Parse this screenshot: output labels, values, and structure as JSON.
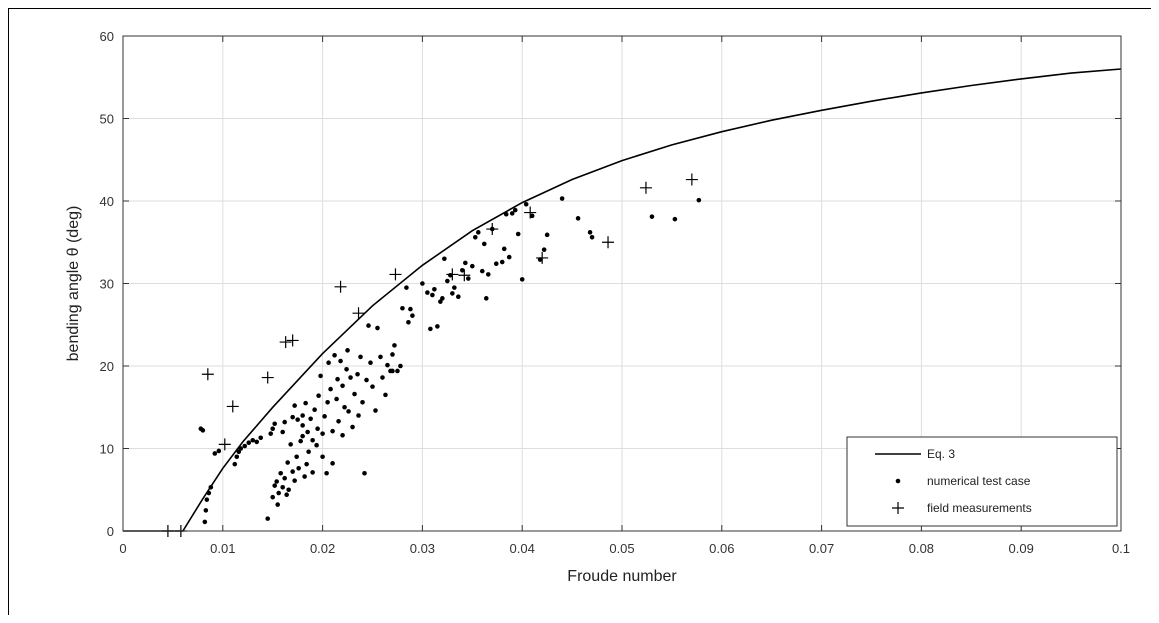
{
  "chart_data": {
    "type": "scatter",
    "title": "",
    "xlabel": "Froude number",
    "ylabel": "bending angle θ (deg)",
    "xlim": [
      0,
      0.1
    ],
    "ylim": [
      0,
      60
    ],
    "grid": true,
    "legend_position": "bottom-right",
    "x_ticks": [
      0,
      0.01,
      0.02,
      0.03,
      0.04,
      0.05,
      0.06,
      0.07,
      0.08,
      0.09,
      0.1
    ],
    "x_tick_labels": [
      "0",
      "0.01",
      "0.02",
      "0.03",
      "0.04",
      "0.05",
      "0.06",
      "0.07",
      "0.08",
      "0.09",
      "0.1"
    ],
    "y_ticks": [
      0,
      10,
      20,
      30,
      40,
      50,
      60
    ],
    "y_tick_labels": [
      "0",
      "10",
      "20",
      "30",
      "40",
      "50",
      "60"
    ],
    "series": [
      {
        "name": "Eq. 3",
        "kind": "line",
        "color": "#000000",
        "x": [
          0,
          0.006,
          0.008,
          0.01,
          0.012,
          0.015,
          0.018,
          0.02,
          0.025,
          0.03,
          0.035,
          0.04,
          0.045,
          0.05,
          0.055,
          0.06,
          0.065,
          0.07,
          0.075,
          0.08,
          0.085,
          0.09,
          0.095,
          0.1
        ],
        "y": [
          0,
          0,
          3.9,
          7.6,
          10.8,
          15.0,
          18.9,
          21.5,
          27.3,
          32.2,
          36.4,
          39.8,
          42.6,
          44.9,
          46.8,
          48.4,
          49.8,
          51.0,
          52.1,
          53.1,
          54.0,
          54.8,
          55.5,
          56.0
        ]
      },
      {
        "name": "numerical test case",
        "kind": "points",
        "color": "#000000",
        "points": [
          [
            0.0078,
            12.4
          ],
          [
            0.008,
            12.2
          ],
          [
            0.0082,
            1.1
          ],
          [
            0.0083,
            2.5
          ],
          [
            0.0084,
            3.8
          ],
          [
            0.0086,
            4.6
          ],
          [
            0.0088,
            5.3
          ],
          [
            0.0092,
            9.4
          ],
          [
            0.0096,
            9.7
          ],
          [
            0.0112,
            8.1
          ],
          [
            0.0114,
            9.0
          ],
          [
            0.0116,
            9.6
          ],
          [
            0.0118,
            10.0
          ],
          [
            0.0122,
            10.3
          ],
          [
            0.0126,
            10.7
          ],
          [
            0.013,
            11.0
          ],
          [
            0.0134,
            10.8
          ],
          [
            0.0138,
            11.3
          ],
          [
            0.0145,
            1.5
          ],
          [
            0.0148,
            11.8
          ],
          [
            0.015,
            12.4
          ],
          [
            0.015,
            4.1
          ],
          [
            0.0152,
            5.5
          ],
          [
            0.0152,
            13.0
          ],
          [
            0.0154,
            6.0
          ],
          [
            0.0155,
            3.2
          ],
          [
            0.0156,
            4.6
          ],
          [
            0.0158,
            7.0
          ],
          [
            0.016,
            5.3
          ],
          [
            0.016,
            12.0
          ],
          [
            0.0162,
            6.4
          ],
          [
            0.0162,
            13.2
          ],
          [
            0.0164,
            4.4
          ],
          [
            0.0165,
            8.3
          ],
          [
            0.0166,
            5.0
          ],
          [
            0.0168,
            10.5
          ],
          [
            0.017,
            13.8
          ],
          [
            0.017,
            7.2
          ],
          [
            0.0172,
            6.1
          ],
          [
            0.0172,
            15.2
          ],
          [
            0.0174,
            9.0
          ],
          [
            0.0175,
            13.5
          ],
          [
            0.0176,
            7.6
          ],
          [
            0.0178,
            10.9
          ],
          [
            0.018,
            14.0
          ],
          [
            0.018,
            11.5
          ],
          [
            0.018,
            12.8
          ],
          [
            0.0182,
            6.6
          ],
          [
            0.0183,
            15.5
          ],
          [
            0.0184,
            8.1
          ],
          [
            0.0185,
            12.0
          ],
          [
            0.0186,
            9.6
          ],
          [
            0.0188,
            13.6
          ],
          [
            0.019,
            11.0
          ],
          [
            0.019,
            7.1
          ],
          [
            0.0192,
            14.7
          ],
          [
            0.0194,
            10.4
          ],
          [
            0.0195,
            12.4
          ],
          [
            0.0196,
            16.4
          ],
          [
            0.0198,
            18.8
          ],
          [
            0.02,
            9.0
          ],
          [
            0.02,
            11.8
          ],
          [
            0.0202,
            13.9
          ],
          [
            0.0204,
            7.0
          ],
          [
            0.0205,
            15.6
          ],
          [
            0.0206,
            20.4
          ],
          [
            0.0208,
            17.2
          ],
          [
            0.021,
            12.1
          ],
          [
            0.021,
            8.2
          ],
          [
            0.0212,
            21.3
          ],
          [
            0.0214,
            16.0
          ],
          [
            0.0215,
            18.4
          ],
          [
            0.0216,
            13.3
          ],
          [
            0.0218,
            20.6
          ],
          [
            0.022,
            17.6
          ],
          [
            0.022,
            11.6
          ],
          [
            0.0222,
            15.0
          ],
          [
            0.0224,
            19.6
          ],
          [
            0.0225,
            21.9
          ],
          [
            0.0226,
            14.5
          ],
          [
            0.0228,
            18.6
          ],
          [
            0.023,
            12.6
          ],
          [
            0.0232,
            16.6
          ],
          [
            0.0235,
            19.0
          ],
          [
            0.0236,
            14.0
          ],
          [
            0.0238,
            21.1
          ],
          [
            0.024,
            15.6
          ],
          [
            0.0242,
            7.0
          ],
          [
            0.0244,
            18.3
          ],
          [
            0.0246,
            24.9
          ],
          [
            0.0248,
            20.4
          ],
          [
            0.025,
            17.5
          ],
          [
            0.0253,
            14.6
          ],
          [
            0.0255,
            24.6
          ],
          [
            0.0258,
            21.1
          ],
          [
            0.026,
            18.6
          ],
          [
            0.0263,
            16.5
          ],
          [
            0.0265,
            20.1
          ],
          [
            0.0268,
            19.4
          ],
          [
            0.027,
            21.4
          ],
          [
            0.027,
            19.4
          ],
          [
            0.0272,
            22.5
          ],
          [
            0.0275,
            19.4
          ],
          [
            0.0278,
            20.0
          ],
          [
            0.028,
            27.0
          ],
          [
            0.0284,
            29.5
          ],
          [
            0.0286,
            25.3
          ],
          [
            0.0288,
            26.9
          ],
          [
            0.029,
            26.1
          ],
          [
            0.03,
            30.0
          ],
          [
            0.0305,
            28.9
          ],
          [
            0.0308,
            24.5
          ],
          [
            0.031,
            28.6
          ],
          [
            0.0312,
            29.3
          ],
          [
            0.0315,
            24.8
          ],
          [
            0.0318,
            27.8
          ],
          [
            0.032,
            28.2
          ],
          [
            0.0322,
            33.0
          ],
          [
            0.0325,
            30.3
          ],
          [
            0.0328,
            31.0
          ],
          [
            0.033,
            28.8
          ],
          [
            0.0332,
            29.5
          ],
          [
            0.0336,
            28.4
          ],
          [
            0.034,
            31.6
          ],
          [
            0.0343,
            32.5
          ],
          [
            0.0346,
            30.6
          ],
          [
            0.035,
            32.1
          ],
          [
            0.0353,
            35.6
          ],
          [
            0.0356,
            36.2
          ],
          [
            0.036,
            31.5
          ],
          [
            0.0362,
            34.8
          ],
          [
            0.0364,
            28.2
          ],
          [
            0.0366,
            31.1
          ],
          [
            0.037,
            36.6
          ],
          [
            0.0374,
            32.4
          ],
          [
            0.038,
            32.6
          ],
          [
            0.0382,
            34.2
          ],
          [
            0.0384,
            38.4
          ],
          [
            0.0387,
            33.2
          ],
          [
            0.039,
            38.5
          ],
          [
            0.0393,
            38.9
          ],
          [
            0.0396,
            36.0
          ],
          [
            0.04,
            30.5
          ],
          [
            0.0404,
            39.6
          ],
          [
            0.041,
            38.2
          ],
          [
            0.0418,
            32.9
          ],
          [
            0.0422,
            34.1
          ],
          [
            0.0425,
            35.9
          ],
          [
            0.044,
            40.3
          ],
          [
            0.0456,
            37.9
          ],
          [
            0.0468,
            36.2
          ],
          [
            0.047,
            35.6
          ],
          [
            0.053,
            38.1
          ],
          [
            0.0553,
            37.8
          ],
          [
            0.0577,
            40.1
          ]
        ]
      },
      {
        "name": "field measurements",
        "kind": "plus",
        "color": "#000000",
        "points": [
          [
            0.0045,
            0.0
          ],
          [
            0.0058,
            0.0
          ],
          [
            0.0085,
            19.0
          ],
          [
            0.0102,
            10.5
          ],
          [
            0.011,
            15.1
          ],
          [
            0.0145,
            18.6
          ],
          [
            0.0163,
            22.9
          ],
          [
            0.017,
            23.1
          ],
          [
            0.0218,
            29.6
          ],
          [
            0.0236,
            26.4
          ],
          [
            0.0273,
            31.1
          ],
          [
            0.033,
            31.1
          ],
          [
            0.0342,
            31.0
          ],
          [
            0.037,
            36.6
          ],
          [
            0.0408,
            38.6
          ],
          [
            0.042,
            33.1
          ],
          [
            0.0486,
            35.0
          ],
          [
            0.0524,
            41.6
          ],
          [
            0.057,
            42.6
          ]
        ]
      }
    ]
  }
}
